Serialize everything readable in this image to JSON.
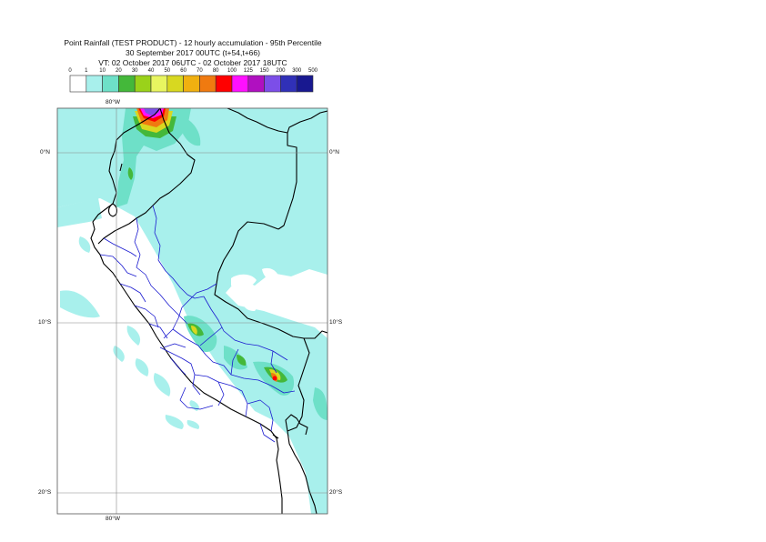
{
  "title": {
    "line1": "Point Rainfall (TEST PRODUCT) - 12 hourly accumulation - 95th Percentile",
    "line2": "30 September 2017 00UTC (t+54,t+66)",
    "line3": "VT: 02 October 2017 06UTC - 02 October 2017 18UTC"
  },
  "legend": {
    "values": [
      "0",
      "1",
      "10",
      "20",
      "30",
      "40",
      "50",
      "60",
      "70",
      "80",
      "100",
      "125",
      "150",
      "200",
      "300",
      "500"
    ],
    "colors": [
      "#ffffff",
      "#a8f0ec",
      "#6ee0c8",
      "#44b83a",
      "#9ad21a",
      "#e8f560",
      "#d8d820",
      "#f0b010",
      "#f07a10",
      "#ff0000",
      "#ff10ff",
      "#b010c0",
      "#7c4ee8",
      "#3030b8",
      "#181890"
    ]
  },
  "map": {
    "lat_labels": [
      "0°N",
      "10°S",
      "20°S"
    ],
    "lon_label": "80°W"
  },
  "colors": {
    "rain_light": "#a8f0ec",
    "rain_medium": "#6ee0c8",
    "coast": "#000000",
    "regions": "#1a1ad0",
    "grid": "#888888"
  }
}
